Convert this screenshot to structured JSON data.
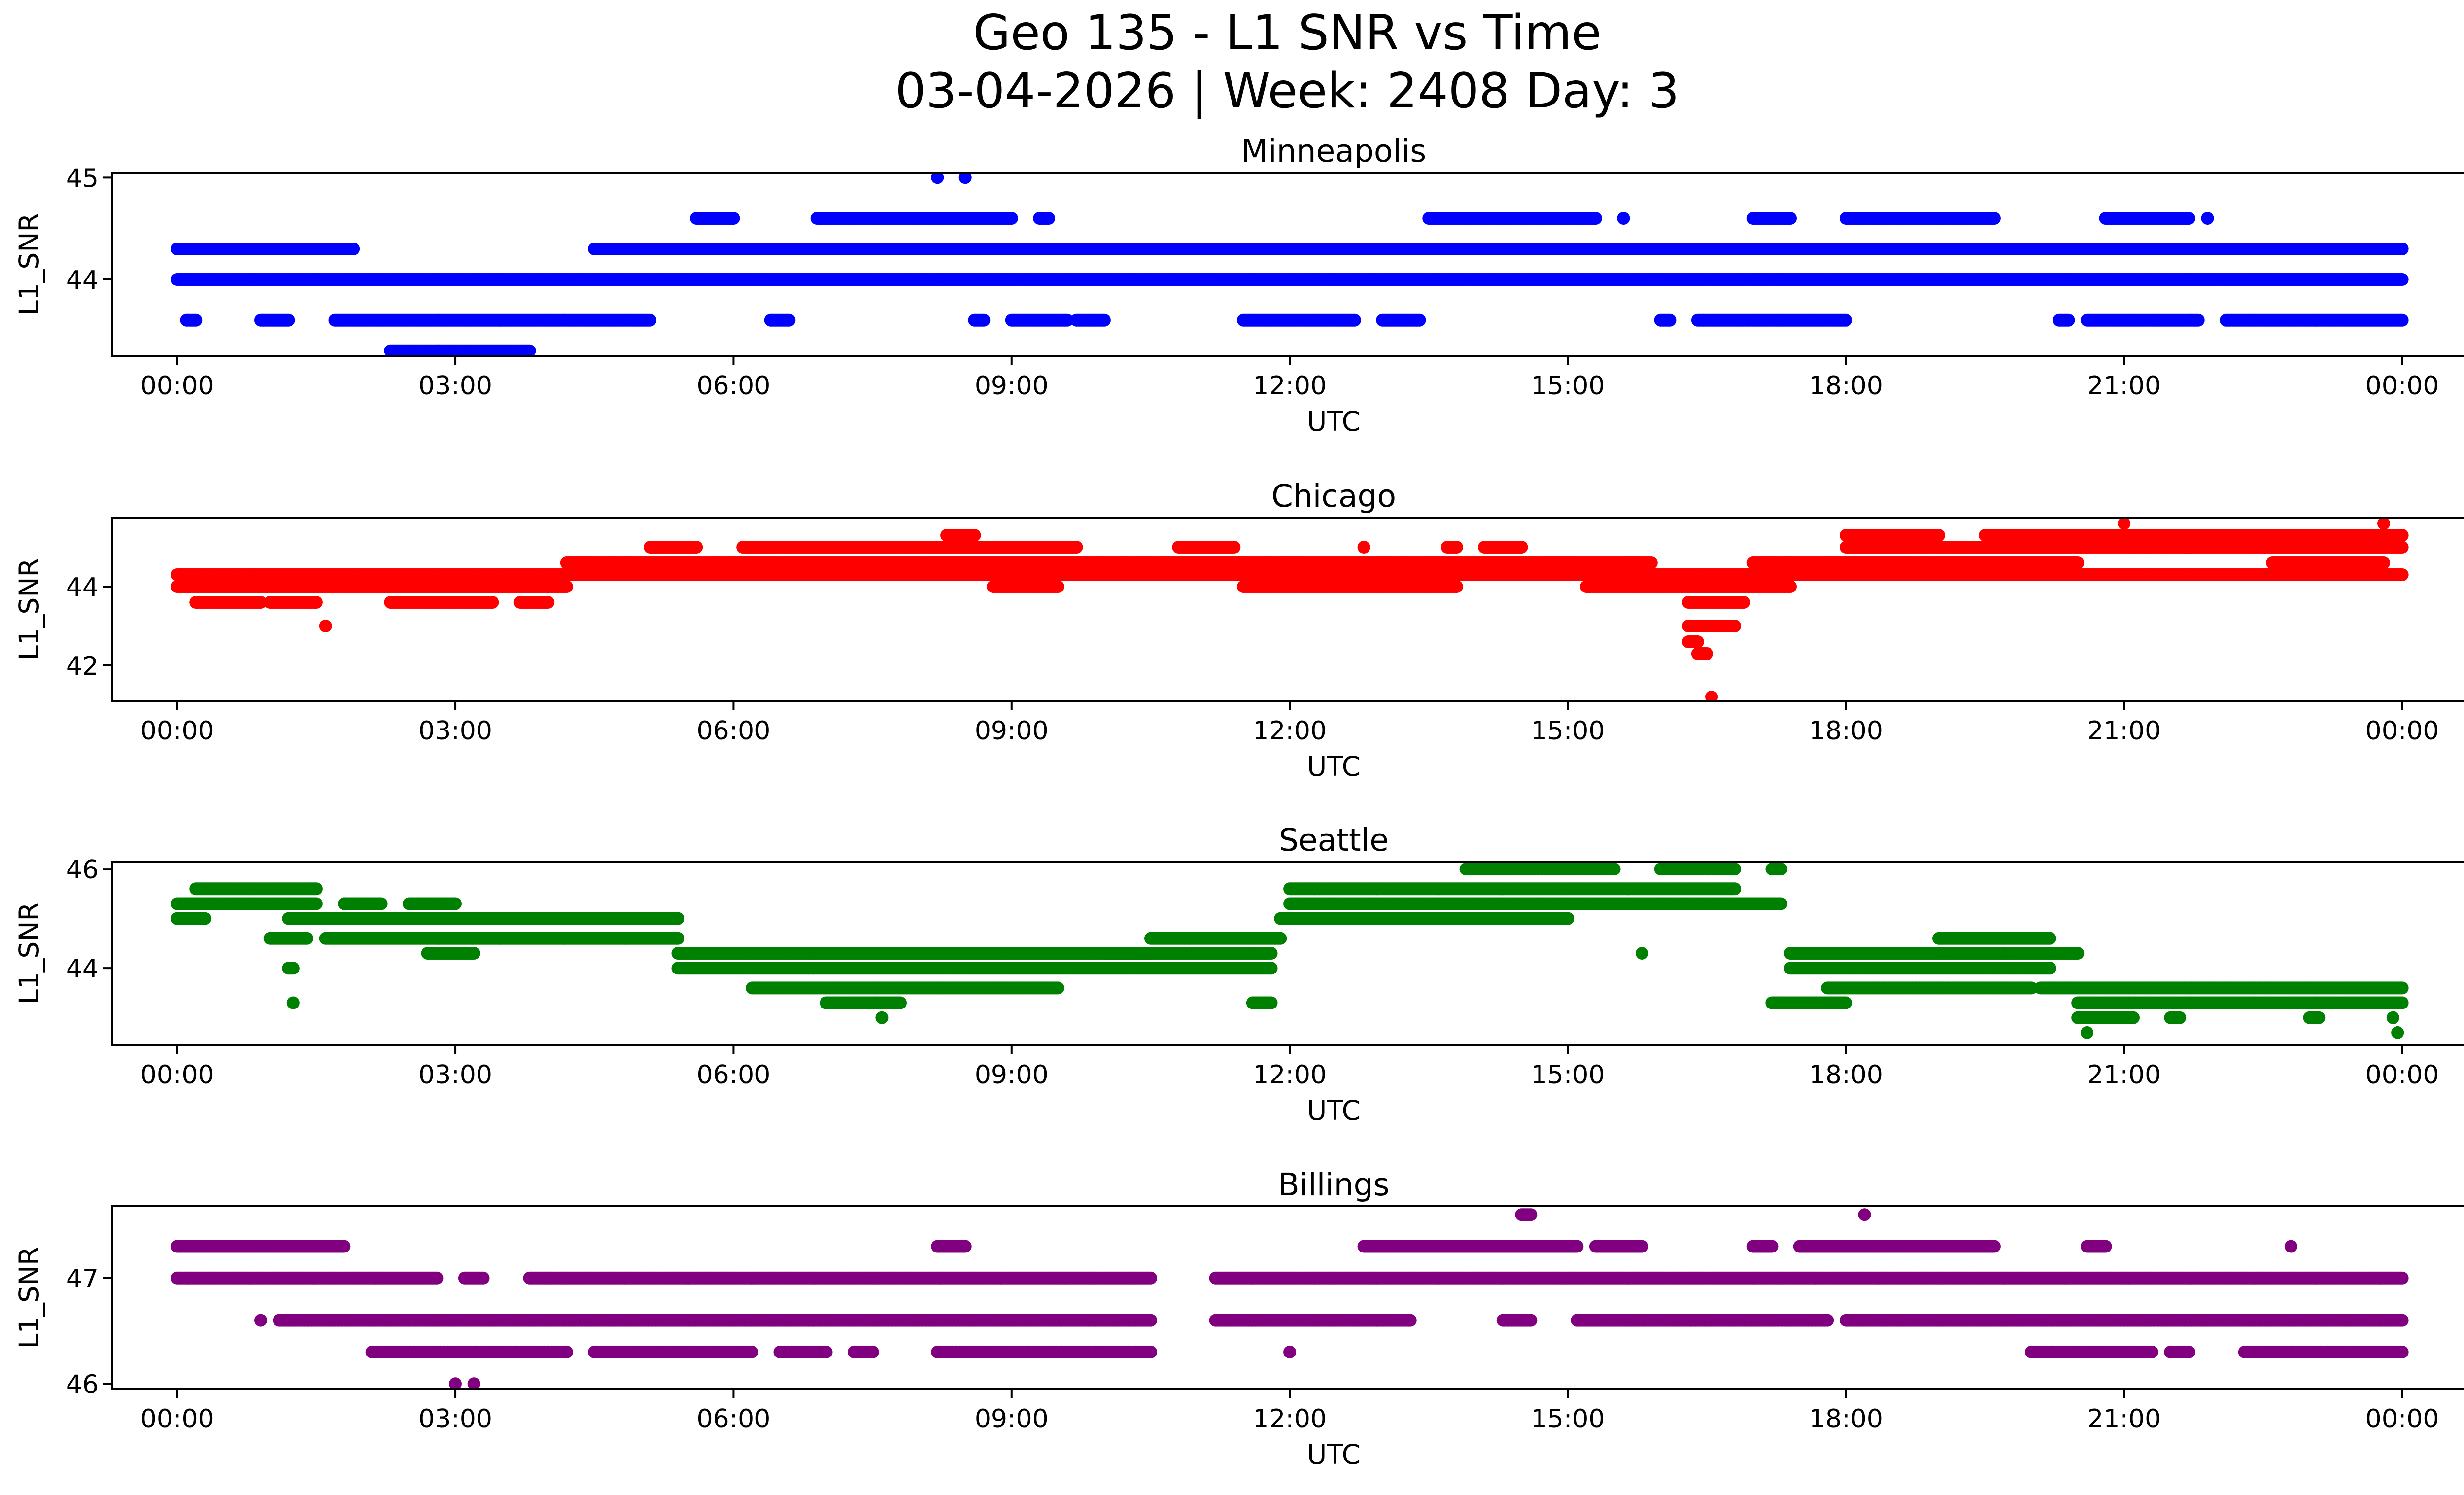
{
  "title_line1": "Geo 135 - L1 SNR vs Time",
  "title_line2": "03-04-2026 | Week: 2408 Day: 3",
  "chart_data": {
    "type": "scatter",
    "xlabel": "UTC",
    "ylabel": "L1_SNR",
    "xlim": [
      -0.7,
      25.65
    ],
    "x_ticks": [
      0,
      3,
      6,
      9,
      12,
      15,
      18,
      21,
      24
    ],
    "x_tick_labels": [
      "00:00",
      "03:00",
      "06:00",
      "09:00",
      "12:00",
      "15:00",
      "18:00",
      "21:00",
      "00:00"
    ],
    "panels": [
      {
        "name": "Minneapolis",
        "color": "#0000ff",
        "ylim": [
          43.25,
          45.05
        ],
        "y_ticks": [
          44,
          45
        ],
        "y_tick_labels": [
          "44",
          "45"
        ],
        "segments": [
          {
            "y": 44.0,
            "x": [
              [
                0,
                24
              ]
            ]
          },
          {
            "y": 44.3,
            "x": [
              [
                0,
                1.9
              ],
              [
                4.5,
                24
              ]
            ]
          },
          {
            "y": 43.6,
            "x": [
              [
                0.1,
                0.2
              ],
              [
                0.9,
                1.2
              ],
              [
                1.7,
                5.1
              ],
              [
                6.4,
                6.6
              ],
              [
                8.6,
                8.7
              ],
              [
                9.0,
                9.6
              ],
              [
                9.7,
                10.0
              ],
              [
                11.5,
                12.7
              ],
              [
                13.0,
                13.4
              ],
              [
                16.0,
                16.1
              ],
              [
                16.4,
                18.0
              ],
              [
                20.3,
                20.4
              ],
              [
                20.6,
                21.8
              ],
              [
                22.1,
                24
              ]
            ]
          },
          {
            "y": 44.6,
            "x": [
              [
                5.6,
                6.0
              ],
              [
                6.9,
                9.0
              ],
              [
                9.3,
                9.4
              ],
              [
                13.5,
                15.3
              ],
              [
                15.6,
                15.6
              ],
              [
                17.0,
                17.4
              ],
              [
                18.0,
                19.6
              ],
              [
                20.8,
                21.7
              ],
              [
                21.9,
                21.9
              ]
            ]
          },
          {
            "y": 43.3,
            "x": [
              [
                2.3,
                3.8
              ]
            ]
          },
          {
            "y": 45.0,
            "x": [
              [
                8.2,
                8.2
              ],
              [
                8.5,
                8.5
              ]
            ]
          }
        ]
      },
      {
        "name": "Chicago",
        "color": "#ff0000",
        "ylim": [
          41.1,
          45.75
        ],
        "y_ticks": [
          42,
          44
        ],
        "y_tick_labels": [
          "42",
          "44"
        ],
        "segments": [
          {
            "y": 44.0,
            "x": [
              [
                0,
                4.2
              ],
              [
                15.2,
                17.4
              ]
            ]
          },
          {
            "y": 44.3,
            "x": [
              [
                0,
                24
              ]
            ]
          },
          {
            "y": 43.6,
            "x": [
              [
                0.2,
                0.9
              ],
              [
                1.0,
                1.5
              ],
              [
                2.3,
                3.4
              ],
              [
                3.7,
                4.0
              ]
            ]
          },
          {
            "y": 44.6,
            "x": [
              [
                4.2,
                15.9
              ],
              [
                17.0,
                20.5
              ]
            ]
          },
          {
            "y": 45.0,
            "x": [
              [
                5.1,
                5.6
              ],
              [
                6.1,
                9.7
              ],
              [
                10.8,
                11.4
              ],
              [
                12.8,
                12.8
              ],
              [
                13.7,
                13.8
              ],
              [
                14.1,
                14.5
              ],
              [
                18.0,
                24
              ]
            ]
          },
          {
            "y": 44.0,
            "x": [
              [
                8.8,
                9.5
              ],
              [
                11.5,
                13.8
              ]
            ]
          },
          {
            "y": 45.3,
            "x": [
              [
                8.3,
                8.6
              ],
              [
                18.0,
                19.0
              ],
              [
                19.5,
                24
              ]
            ]
          },
          {
            "y": 43.0,
            "x": [
              [
                1.6,
                1.6
              ],
              [
                16.3,
                16.8
              ]
            ]
          },
          {
            "y": 43.6,
            "x": [
              [
                16.3,
                16.9
              ]
            ]
          },
          {
            "y": 42.3,
            "x": [
              [
                16.4,
                16.5
              ]
            ]
          },
          {
            "y": 42.6,
            "x": [
              [
                16.3,
                16.4
              ]
            ]
          },
          {
            "y": 41.2,
            "x": [
              [
                16.55,
                16.55
              ]
            ]
          },
          {
            "y": 44.6,
            "x": [
              [
                22.6,
                23.8
              ]
            ]
          },
          {
            "y": 45.6,
            "x": [
              [
                21.0,
                21.0
              ],
              [
                23.8,
                23.8
              ]
            ]
          }
        ]
      },
      {
        "name": "Seattle",
        "color": "#008000",
        "ylim": [
          42.45,
          46.15
        ],
        "y_ticks": [
          44,
          46
        ],
        "y_tick_labels": [
          "44",
          "46"
        ],
        "segments": [
          {
            "y": 45.0,
            "x": [
              [
                0,
                0.3
              ],
              [
                1.2,
                5.4
              ]
            ]
          },
          {
            "y": 45.3,
            "x": [
              [
                0,
                1.5
              ],
              [
                1.8,
                2.2
              ],
              [
                2.5,
                3.0
              ],
              [
                12.0,
                17.3
              ]
            ]
          },
          {
            "y": 45.6,
            "x": [
              [
                0.2,
                1.5
              ],
              [
                12.0,
                16.8
              ]
            ]
          },
          {
            "y": 44.6,
            "x": [
              [
                1.0,
                1.4
              ],
              [
                1.6,
                5.4
              ],
              [
                10.5,
                11.9
              ]
            ]
          },
          {
            "y": 44.3,
            "x": [
              [
                2.7,
                3.2
              ],
              [
                10.0,
                11.8
              ]
            ]
          },
          {
            "y": 44.0,
            "x": [
              [
                5.4,
                11.8
              ],
              [
                17.4,
                20.2
              ]
            ]
          },
          {
            "y": 44.3,
            "x": [
              [
                5.4,
                10.5
              ],
              [
                17.4,
                20.5
              ]
            ]
          },
          {
            "y": 43.6,
            "x": [
              [
                6.2,
                9.5
              ],
              [
                17.8,
                20.0
              ],
              [
                20.1,
                24
              ]
            ]
          },
          {
            "y": 43.3,
            "x": [
              [
                7.0,
                7.8
              ],
              [
                11.6,
                11.8
              ],
              [
                17.2,
                18.0
              ],
              [
                20.5,
                24
              ]
            ]
          },
          {
            "y": 45.0,
            "x": [
              [
                11.9,
                15.0
              ]
            ]
          },
          {
            "y": 46.0,
            "x": [
              [
                13.9,
                15.5
              ],
              [
                16.0,
                16.8
              ],
              [
                17.2,
                17.3
              ]
            ]
          },
          {
            "y": 44.3,
            "x": [
              [
                15.8,
                15.8
              ]
            ]
          },
          {
            "y": 43.0,
            "x": [
              [
                20.5,
                21.1
              ],
              [
                21.5,
                21.6
              ],
              [
                23.0,
                23.1
              ],
              [
                23.9,
                23.9
              ]
            ]
          },
          {
            "y": 42.7,
            "x": [
              [
                20.6,
                20.6
              ],
              [
                23.95,
                23.95
              ]
            ]
          },
          {
            "y": 44.6,
            "x": [
              [
                19.0,
                20.2
              ]
            ]
          },
          {
            "y": 43.0,
            "x": [
              [
                7.6,
                7.6
              ]
            ]
          },
          {
            "y": 43.3,
            "x": [
              [
                1.25,
                1.25
              ]
            ]
          },
          {
            "y": 44.0,
            "x": [
              [
                1.2,
                1.25
              ]
            ]
          }
        ]
      },
      {
        "name": "Billings",
        "color": "#800080",
        "ylim": [
          45.95,
          47.68
        ],
        "y_ticks": [
          46,
          47
        ],
        "y_tick_labels": [
          "46",
          "47"
        ],
        "segments": [
          {
            "y": 47.0,
            "x": [
              [
                0,
                2.8
              ],
              [
                3.1,
                3.3
              ],
              [
                3.8,
                10.5
              ],
              [
                11.2,
                24
              ]
            ]
          },
          {
            "y": 47.3,
            "x": [
              [
                0,
                1.8
              ],
              [
                8.2,
                8.5
              ],
              [
                12.8,
                15.1
              ],
              [
                15.3,
                15.8
              ],
              [
                17.0,
                17.2
              ],
              [
                17.5,
                19.6
              ],
              [
                20.6,
                20.8
              ],
              [
                22.8,
                22.8
              ]
            ]
          },
          {
            "y": 46.6,
            "x": [
              [
                0.9,
                0.9
              ],
              [
                1.1,
                10.5
              ],
              [
                11.2,
                13.3
              ],
              [
                14.3,
                14.6
              ],
              [
                15.1,
                17.8
              ],
              [
                18.0,
                24
              ]
            ]
          },
          {
            "y": 46.3,
            "x": [
              [
                2.1,
                4.2
              ],
              [
                4.5,
                6.2
              ],
              [
                6.5,
                7.0
              ],
              [
                7.3,
                7.5
              ],
              [
                8.2,
                10.5
              ],
              [
                12.0,
                12.0
              ],
              [
                20.0,
                21.3
              ],
              [
                21.5,
                21.7
              ],
              [
                22.3,
                24
              ]
            ]
          },
          {
            "y": 46.0,
            "x": [
              [
                3.0,
                3.0
              ],
              [
                3.2,
                3.2
              ]
            ]
          },
          {
            "y": 47.6,
            "x": [
              [
                14.5,
                14.6
              ],
              [
                18.2,
                18.2
              ]
            ]
          }
        ]
      }
    ]
  }
}
